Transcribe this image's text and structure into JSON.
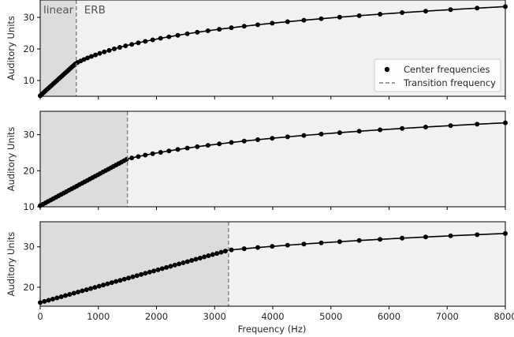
{
  "chart_data": {
    "type": "scatter",
    "xlabel": "Frequency (Hz)",
    "ylabel": "Auditory Units",
    "xlim": [
      0,
      8000
    ],
    "x_ticks": [
      0,
      1000,
      2000,
      3000,
      4000,
      5000,
      6000,
      7000,
      8000
    ],
    "legend": {
      "placement": "lower-right",
      "entries": [
        "Center frequencies",
        "Transition frequency"
      ]
    },
    "colors": {
      "points": "#000000",
      "line": "#000000",
      "transition_line": "#808080",
      "linear_region": "#dcdcdc",
      "erb_region": "#f1f1f1"
    },
    "panels": [
      {
        "ylim": [
          5,
          35.5
        ],
        "y_ticks": [
          10,
          20,
          30
        ],
        "transition_frequency": 620,
        "region_labels": [
          "linear",
          "ERB"
        ],
        "y_start": 5.2,
        "y_end": 33.4,
        "num_points": 60
      },
      {
        "ylim": [
          10,
          36.5
        ],
        "y_ticks": [
          10,
          20,
          30
        ],
        "transition_frequency": 1500,
        "region_labels": [],
        "y_start": 10.3,
        "y_end": 33.3,
        "num_points": 60
      },
      {
        "ylim": [
          15.3,
          36.2
        ],
        "y_ticks": [
          20,
          30
        ],
        "transition_frequency": 3240,
        "region_labels": [],
        "y_start": 16.2,
        "y_end": 33.3,
        "num_points": 60
      }
    ]
  }
}
